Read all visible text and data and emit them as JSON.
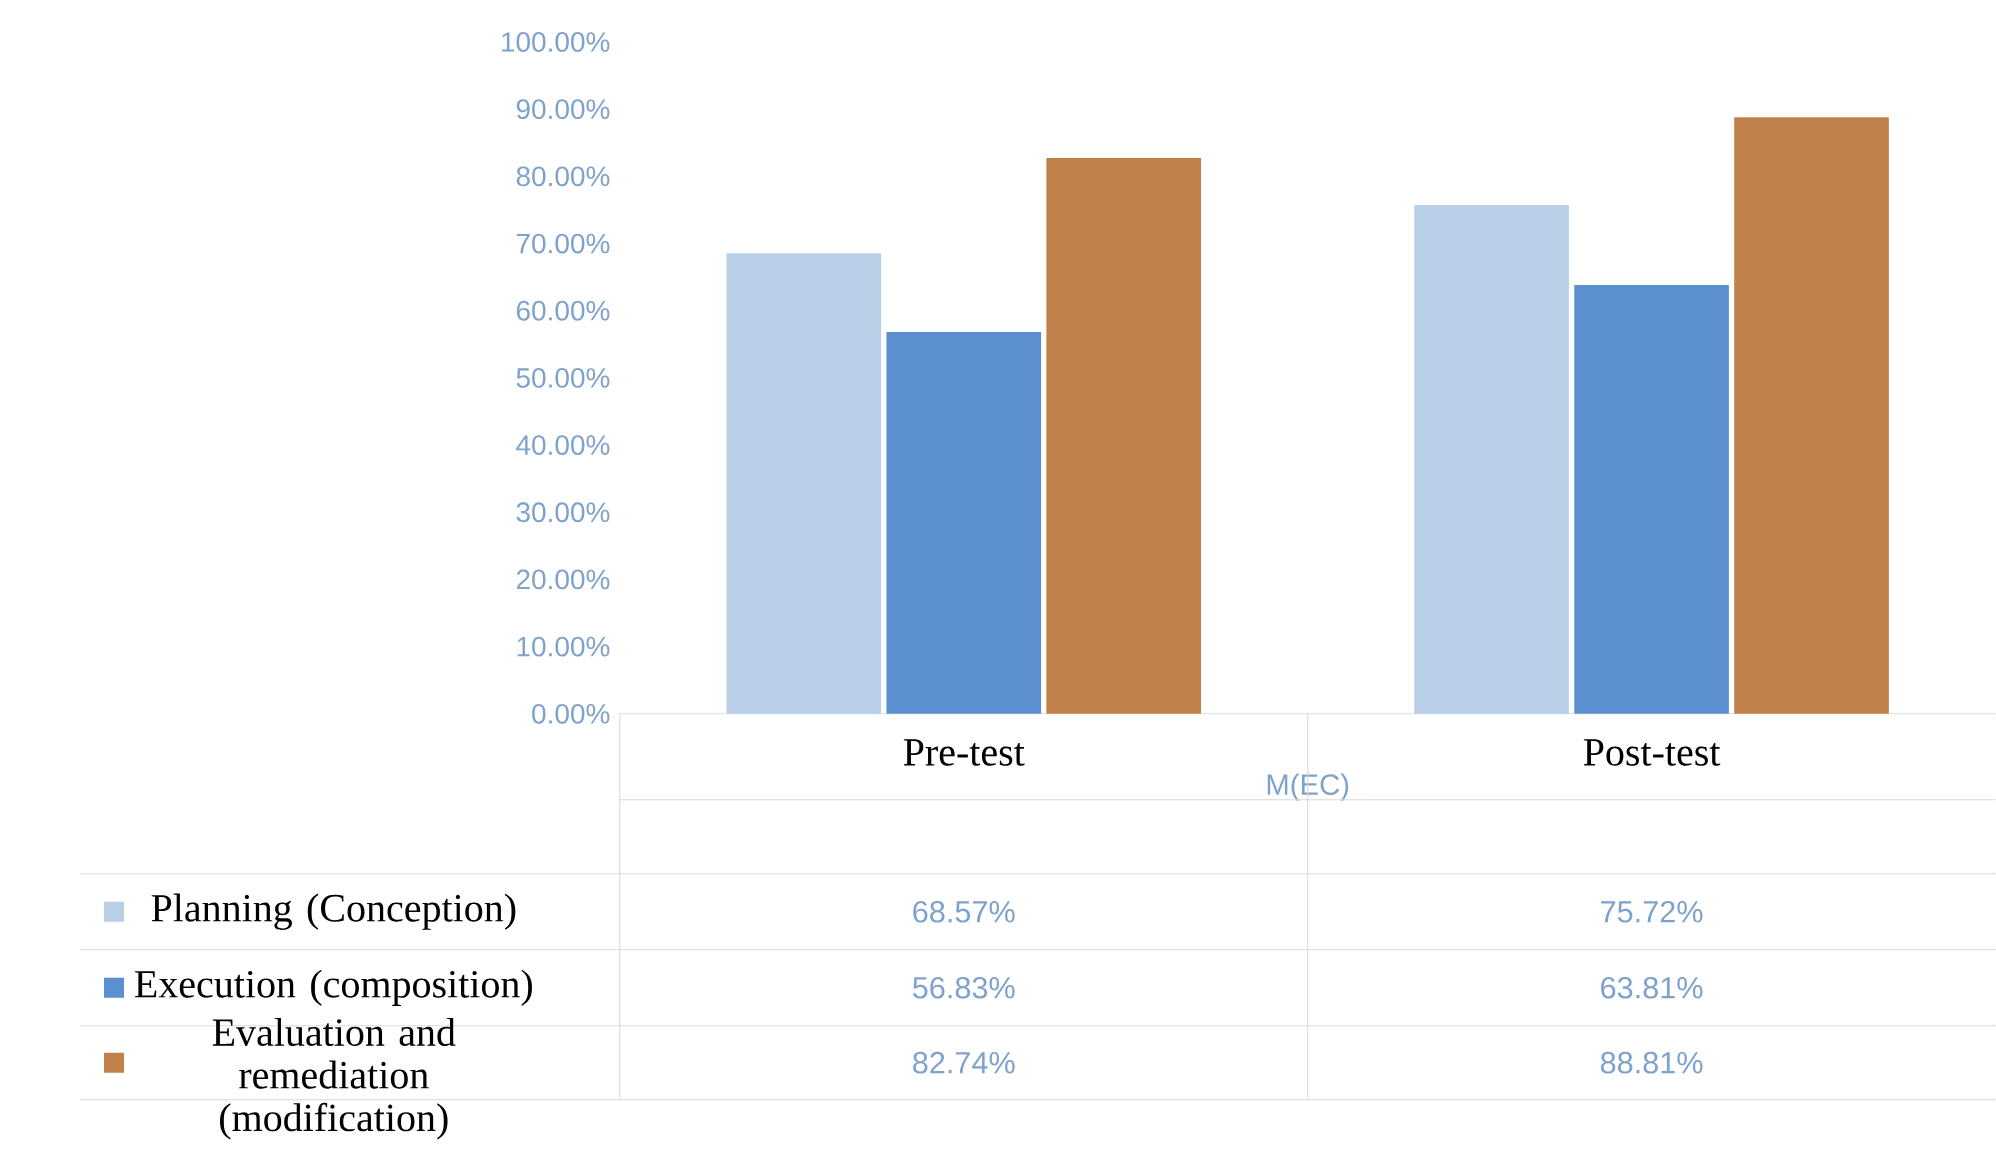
{
  "chart_data": {
    "type": "bar",
    "xlabel": "M(EC)",
    "categories": [
      "Pre-test",
      "Post-test"
    ],
    "series": [
      {
        "name": "Planning (Conception)",
        "color": "#b9cfe8",
        "values": [
          68.57,
          75.72
        ],
        "value_labels": [
          "68.57%",
          "75.72%"
        ]
      },
      {
        "name": "Execution (composition)",
        "color": "#5b8fd0",
        "values": [
          56.83,
          63.81
        ],
        "value_labels": [
          "56.83%",
          "63.81%"
        ]
      },
      {
        "name": "Evaluation and remediation (modification)",
        "color": "#c0804a",
        "values": [
          82.74,
          88.81
        ],
        "value_labels": [
          "82.74%",
          "88.81%"
        ]
      }
    ],
    "ylim": [
      0,
      100
    ],
    "yticks": [
      {
        "value": 0,
        "label": "0.00%"
      },
      {
        "value": 10,
        "label": "10.00%"
      },
      {
        "value": 20,
        "label": "20.00%"
      },
      {
        "value": 30,
        "label": "30.00%"
      },
      {
        "value": 40,
        "label": "40.00%"
      },
      {
        "value": 50,
        "label": "50.00%"
      },
      {
        "value": 60,
        "label": "60.00%"
      },
      {
        "value": 70,
        "label": "70.00%"
      },
      {
        "value": 80,
        "label": "80.00%"
      },
      {
        "value": 90,
        "label": "90.00%"
      },
      {
        "value": 100,
        "label": "100.00%"
      }
    ],
    "legend": "bottom left",
    "grid": false
  }
}
